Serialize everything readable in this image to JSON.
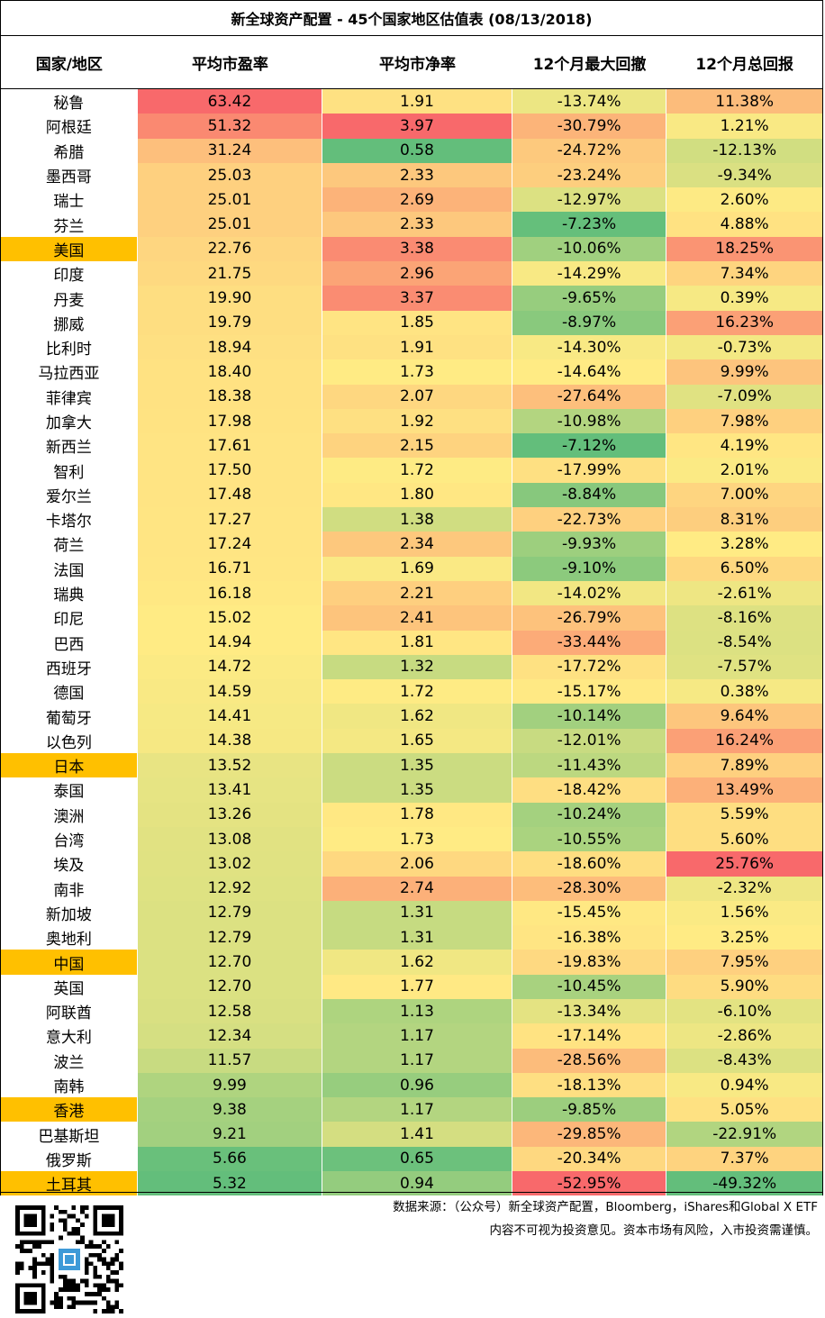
{
  "title": "新全球资产配置 - 45个国家地区估值表 (08/13/2018)",
  "headers": [
    "国家/地区",
    "平均市盈率",
    "平均市净率",
    "12个月最大回撤",
    "12个月总回报"
  ],
  "highlight_color": "#FFC000",
  "chart_data": {
    "type": "table",
    "columns": [
      "国家/地区",
      "平均市盈率",
      "平均市净率",
      "12个月最大回撤",
      "12个月总回报"
    ],
    "rows": [
      {
        "country": "秘鲁",
        "pe": "63.42",
        "pb": "1.91",
        "dd": "-13.74%",
        "ret": "11.38%",
        "hl": false
      },
      {
        "country": "阿根廷",
        "pe": "51.32",
        "pb": "3.97",
        "dd": "-30.79%",
        "ret": "1.21%",
        "hl": false
      },
      {
        "country": "希腊",
        "pe": "31.24",
        "pb": "0.58",
        "dd": "-24.72%",
        "ret": "-12.13%",
        "hl": false
      },
      {
        "country": "墨西哥",
        "pe": "25.03",
        "pb": "2.33",
        "dd": "-23.24%",
        "ret": "-9.34%",
        "hl": false
      },
      {
        "country": "瑞士",
        "pe": "25.01",
        "pb": "2.69",
        "dd": "-12.97%",
        "ret": "2.60%",
        "hl": false
      },
      {
        "country": "芬兰",
        "pe": "25.01",
        "pb": "2.33",
        "dd": "-7.23%",
        "ret": "4.88%",
        "hl": false
      },
      {
        "country": "美国",
        "pe": "22.76",
        "pb": "3.38",
        "dd": "-10.06%",
        "ret": "18.25%",
        "hl": true
      },
      {
        "country": "印度",
        "pe": "21.75",
        "pb": "2.96",
        "dd": "-14.29%",
        "ret": "7.34%",
        "hl": false
      },
      {
        "country": "丹麦",
        "pe": "19.90",
        "pb": "3.37",
        "dd": "-9.65%",
        "ret": "0.39%",
        "hl": false
      },
      {
        "country": "挪威",
        "pe": "19.79",
        "pb": "1.85",
        "dd": "-8.97%",
        "ret": "16.23%",
        "hl": false
      },
      {
        "country": "比利时",
        "pe": "18.94",
        "pb": "1.91",
        "dd": "-14.30%",
        "ret": "-0.73%",
        "hl": false
      },
      {
        "country": "马拉西亚",
        "pe": "18.40",
        "pb": "1.73",
        "dd": "-14.64%",
        "ret": "9.99%",
        "hl": false
      },
      {
        "country": "菲律宾",
        "pe": "18.38",
        "pb": "2.07",
        "dd": "-27.64%",
        "ret": "-7.09%",
        "hl": false
      },
      {
        "country": "加拿大",
        "pe": "17.98",
        "pb": "1.92",
        "dd": "-10.98%",
        "ret": "7.98%",
        "hl": false
      },
      {
        "country": "新西兰",
        "pe": "17.61",
        "pb": "2.15",
        "dd": "-7.12%",
        "ret": "4.19%",
        "hl": false
      },
      {
        "country": "智利",
        "pe": "17.50",
        "pb": "1.72",
        "dd": "-17.99%",
        "ret": "2.01%",
        "hl": false
      },
      {
        "country": "爱尔兰",
        "pe": "17.48",
        "pb": "1.80",
        "dd": "-8.84%",
        "ret": "7.00%",
        "hl": false
      },
      {
        "country": "卡塔尔",
        "pe": "17.27",
        "pb": "1.38",
        "dd": "-22.73%",
        "ret": "8.31%",
        "hl": false
      },
      {
        "country": "荷兰",
        "pe": "17.24",
        "pb": "2.34",
        "dd": "-9.93%",
        "ret": "3.28%",
        "hl": false
      },
      {
        "country": "法国",
        "pe": "16.71",
        "pb": "1.69",
        "dd": "-9.10%",
        "ret": "6.50%",
        "hl": false
      },
      {
        "country": "瑞典",
        "pe": "16.18",
        "pb": "2.21",
        "dd": "-14.02%",
        "ret": "-2.61%",
        "hl": false
      },
      {
        "country": "印尼",
        "pe": "15.02",
        "pb": "2.41",
        "dd": "-26.79%",
        "ret": "-8.16%",
        "hl": false
      },
      {
        "country": "巴西",
        "pe": "14.94",
        "pb": "1.81",
        "dd": "-33.44%",
        "ret": "-8.54%",
        "hl": false
      },
      {
        "country": "西班牙",
        "pe": "14.72",
        "pb": "1.32",
        "dd": "-17.72%",
        "ret": "-7.57%",
        "hl": false
      },
      {
        "country": "德国",
        "pe": "14.59",
        "pb": "1.72",
        "dd": "-15.17%",
        "ret": "0.38%",
        "hl": false
      },
      {
        "country": "葡萄牙",
        "pe": "14.41",
        "pb": "1.62",
        "dd": "-10.14%",
        "ret": "9.64%",
        "hl": false
      },
      {
        "country": "以色列",
        "pe": "14.38",
        "pb": "1.65",
        "dd": "-12.01%",
        "ret": "16.24%",
        "hl": false
      },
      {
        "country": "日本",
        "pe": "13.52",
        "pb": "1.35",
        "dd": "-11.43%",
        "ret": "7.89%",
        "hl": true
      },
      {
        "country": "泰国",
        "pe": "13.41",
        "pb": "1.35",
        "dd": "-18.42%",
        "ret": "13.49%",
        "hl": false
      },
      {
        "country": "澳洲",
        "pe": "13.26",
        "pb": "1.78",
        "dd": "-10.24%",
        "ret": "5.59%",
        "hl": false
      },
      {
        "country": "台湾",
        "pe": "13.08",
        "pb": "1.73",
        "dd": "-10.55%",
        "ret": "5.60%",
        "hl": false
      },
      {
        "country": "埃及",
        "pe": "13.02",
        "pb": "2.06",
        "dd": "-18.60%",
        "ret": "25.76%",
        "hl": false
      },
      {
        "country": "南非",
        "pe": "12.92",
        "pb": "2.74",
        "dd": "-28.30%",
        "ret": "-2.32%",
        "hl": false
      },
      {
        "country": "新加坡",
        "pe": "12.79",
        "pb": "1.31",
        "dd": "-15.45%",
        "ret": "1.56%",
        "hl": false
      },
      {
        "country": "奥地利",
        "pe": "12.79",
        "pb": "1.31",
        "dd": "-16.38%",
        "ret": "3.25%",
        "hl": false
      },
      {
        "country": "中国",
        "pe": "12.70",
        "pb": "1.62",
        "dd": "-19.83%",
        "ret": "7.95%",
        "hl": true
      },
      {
        "country": "英国",
        "pe": "12.70",
        "pb": "1.77",
        "dd": "-10.45%",
        "ret": "5.90%",
        "hl": false
      },
      {
        "country": "阿联酋",
        "pe": "12.58",
        "pb": "1.13",
        "dd": "-13.34%",
        "ret": "-6.10%",
        "hl": false
      },
      {
        "country": "意大利",
        "pe": "12.34",
        "pb": "1.17",
        "dd": "-17.14%",
        "ret": "-2.86%",
        "hl": false
      },
      {
        "country": "波兰",
        "pe": "11.57",
        "pb": "1.17",
        "dd": "-28.56%",
        "ret": "-8.43%",
        "hl": false
      },
      {
        "country": "南韩",
        "pe": "9.99",
        "pb": "0.96",
        "dd": "-18.13%",
        "ret": "0.94%",
        "hl": false
      },
      {
        "country": "香港",
        "pe": "9.38",
        "pb": "1.17",
        "dd": "-9.85%",
        "ret": "5.05%",
        "hl": true
      },
      {
        "country": "巴基斯坦",
        "pe": "9.21",
        "pb": "1.41",
        "dd": "-29.85%",
        "ret": "-22.91%",
        "hl": false
      },
      {
        "country": "俄罗斯",
        "pe": "5.66",
        "pb": "0.65",
        "dd": "-20.34%",
        "ret": "7.37%",
        "hl": false
      },
      {
        "country": "土耳其",
        "pe": "5.32",
        "pb": "0.94",
        "dd": "-52.95%",
        "ret": "-49.32%",
        "hl": true
      }
    ]
  },
  "footer": {
    "source": "数据来源：（公众号）新全球资产配置，Bloomberg，iShares和Global X ETF",
    "disclaimer": "内容不可视为投资意见。资本市场有风险，入市投资需谨慎。"
  }
}
